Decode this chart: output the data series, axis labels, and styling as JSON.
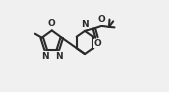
{
  "bg_color": "#f0f0f0",
  "line_color": "#2a2a2a",
  "line_width": 1.5,
  "font_size": 6.5,
  "fig_width": 1.69,
  "fig_height": 0.92,
  "dpi": 100,
  "xlim": [
    0.0,
    1.0
  ],
  "ylim": [
    0.05,
    0.95
  ]
}
